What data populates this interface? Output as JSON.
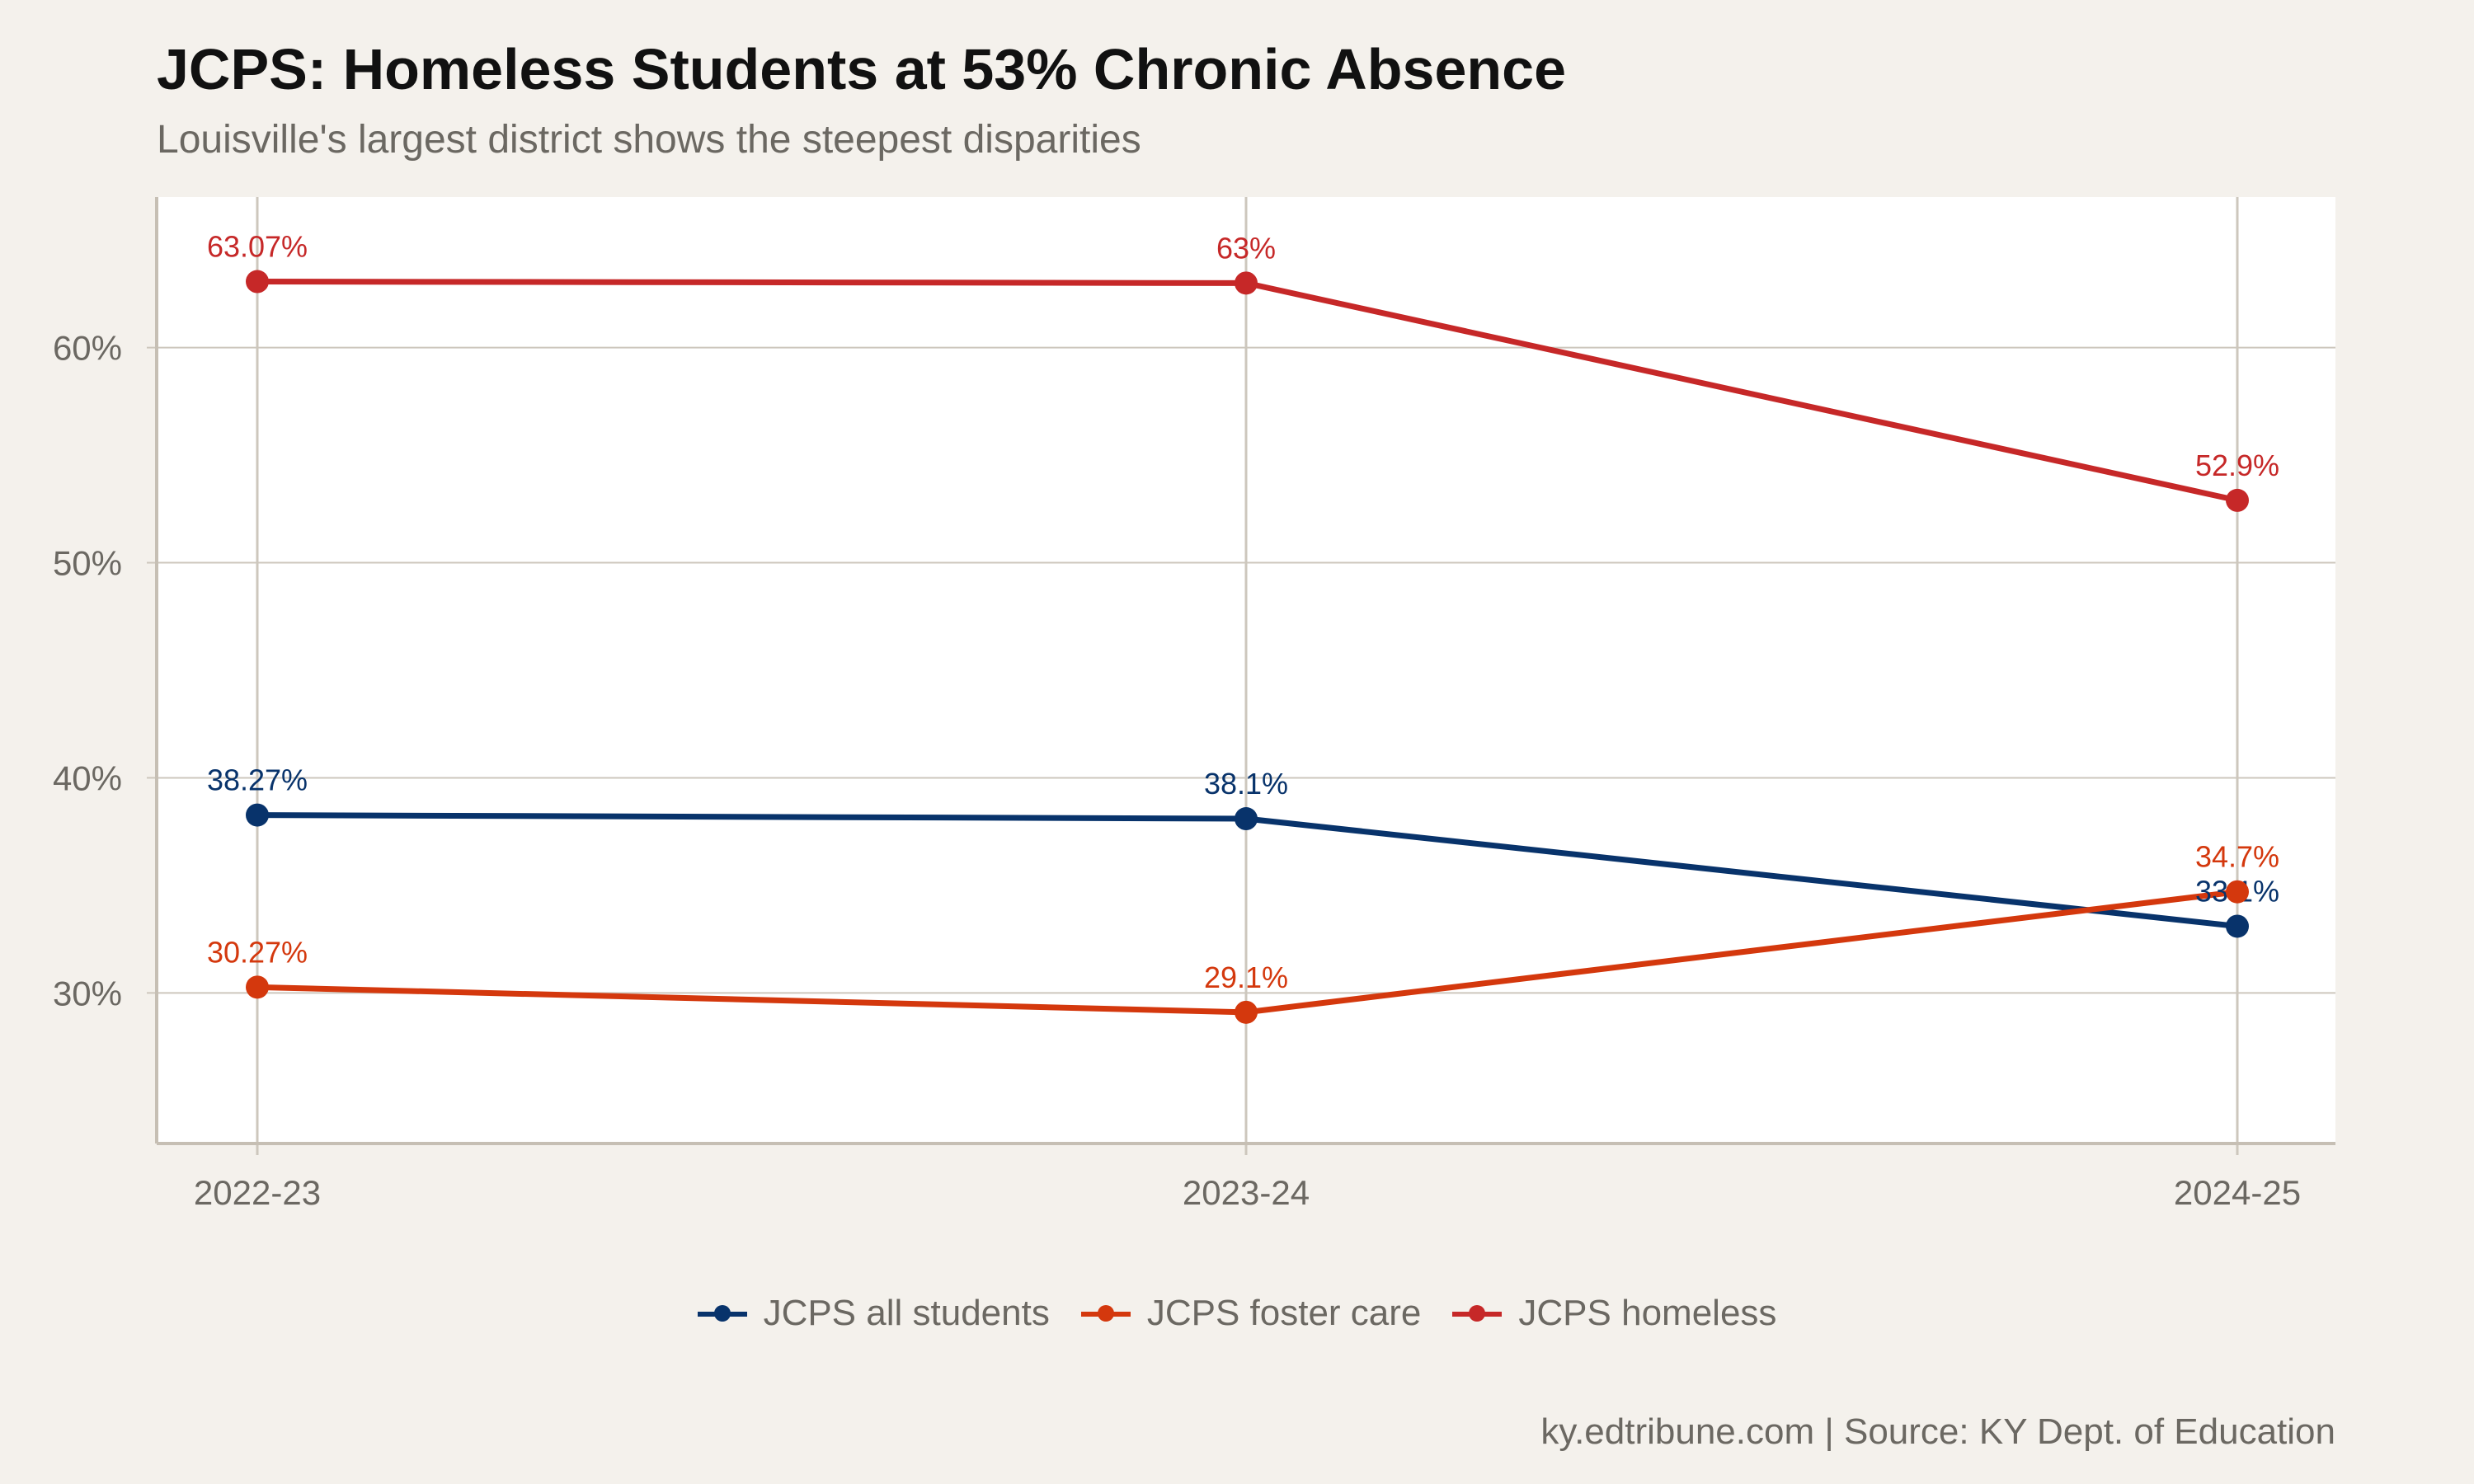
{
  "title": "JCPS: Homeless Students at 53% Chronic Absence",
  "subtitle": "Louisville's largest district shows the steepest disparities",
  "caption": "ky.edtribune.com | Source: KY Dept. of Education",
  "chart_data": {
    "type": "line",
    "categories": [
      "2022-23",
      "2023-24",
      "2024-25"
    ],
    "ylim": [
      23,
      67
    ],
    "yticks": [
      30,
      40,
      50,
      60
    ],
    "ytick_labels": [
      "30%",
      "40%",
      "50%",
      "60%"
    ],
    "grid": true,
    "legend_position": "bottom",
    "series": [
      {
        "name": "JCPS all students",
        "color": "#08336b",
        "values": [
          38.27,
          38.1,
          33.1
        ],
        "labels": [
          "38.27%",
          "38.1%",
          "33.1%"
        ]
      },
      {
        "name": "JCPS foster care",
        "color": "#d4380d",
        "values": [
          30.27,
          29.1,
          34.7
        ],
        "labels": [
          "30.27%",
          "29.1%",
          "34.7%"
        ]
      },
      {
        "name": "JCPS homeless",
        "color": "#c62828",
        "values": [
          63.07,
          63,
          52.9
        ],
        "labels": [
          "63.07%",
          "63%",
          "52.9%"
        ]
      }
    ]
  }
}
